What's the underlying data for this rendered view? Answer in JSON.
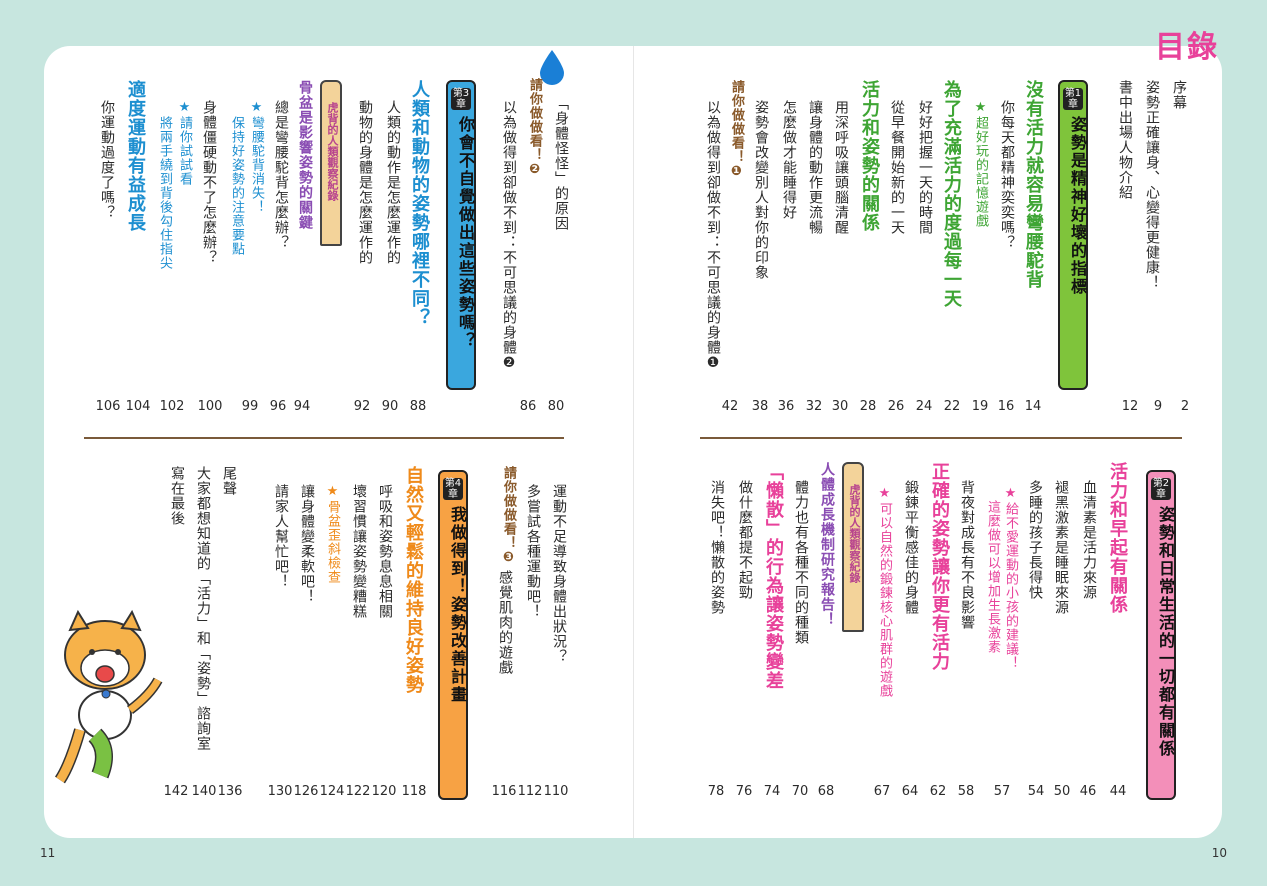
{
  "title": "目錄",
  "page_numbers": {
    "left": "11",
    "right": "10"
  },
  "colors": {
    "bg": "#c7e6df",
    "pink": "#e8419a",
    "green_chapter": "#7fc43b",
    "blue_chapter": "#3aa7de",
    "orange_chapter": "#f7a244",
    "pink_chapter": "#f38fb9",
    "heading_blue": "#1d8fd0",
    "heading_green": "#3ea534",
    "heading_orange": "#ef8a1a",
    "heading_pink": "#e8419a",
    "heading_purple": "#8a4db3",
    "heading_brown": "#8a5a2b"
  },
  "right_top": {
    "entries": [
      {
        "text": "序幕",
        "page": "2"
      },
      {
        "text": "姿勢正確讓身、心變得更健康！",
        "page": "9"
      },
      {
        "text": "書中出場人物介紹",
        "page": "12"
      }
    ],
    "chapter1_num": "第1章",
    "chapter1_title": "姿勢是精神好壞的指標",
    "c1": [
      {
        "text": "沒有活力就容易彎腰駝背",
        "page": "14"
      },
      {
        "text": "你每天都精神奕奕嗎？",
        "page": "16"
      },
      {
        "text": "★超好玩的記憶遊戲",
        "page": "19"
      },
      {
        "text": "為了充滿活力的度過每一天",
        "page": "22"
      },
      {
        "text": "好好把握一天的時間",
        "page": "24"
      },
      {
        "text": "從早餐開始新的一天",
        "page": "26"
      },
      {
        "text": "活力和姿勢的關係",
        "page": "28"
      },
      {
        "text": "用深呼吸讓頭腦清醒",
        "page": "30"
      },
      {
        "text": "讓身體的動作更流暢",
        "page": "32"
      },
      {
        "text": "怎麼做才能睡得好",
        "page": "36"
      },
      {
        "text": "姿勢會改變別人對你的印象",
        "page": "38"
      },
      {
        "text": "請你做做看！❶",
        "page": ""
      },
      {
        "text": "以為做得到卻做不到：不可思議的身體❶",
        "page": "42"
      }
    ]
  },
  "right_bottom": {
    "chapter2_num": "第2章",
    "chapter2_title": "姿勢和日常生活的一切都有關係",
    "c2": [
      {
        "text": "活力和早起有關係",
        "page": "44"
      },
      {
        "text": "血清素是活力來源",
        "page": "46"
      },
      {
        "text": "褪黑激素是睡眠來源",
        "page": "50"
      },
      {
        "text": "多睡的孩子長得快",
        "page": "54"
      },
      {
        "text": "★給不愛運動的小孩的建議！",
        "page": "57"
      },
      {
        "text": "這麼做可以增加生長激素",
        "page": ""
      },
      {
        "text": "背夜對成長有不良影響",
        "page": "58"
      },
      {
        "text": "正確的姿勢讓你更有活力",
        "page": "62"
      },
      {
        "text": "鍛鍊平衡感佳的身體",
        "page": "64"
      },
      {
        "text": "★可以自然的鍛鍊核心肌群的遊戲",
        "page": "67"
      },
      {
        "text": "虎背的人類觀察紀錄",
        "page": ""
      },
      {
        "text": "人體成長機制研究報告！",
        "page": "68"
      },
      {
        "text": "體力也有各種不同的種類",
        "page": "70"
      },
      {
        "text": "「懶散」的行為讓姿勢變差",
        "page": "74"
      },
      {
        "text": "做什麼都提不起勁",
        "page": "76"
      },
      {
        "text": "消失吧！懶散的姿勢",
        "page": "78"
      }
    ]
  },
  "left_top": {
    "entries_a": [
      {
        "text": "「身體怪怪」的原因",
        "page": "80"
      },
      {
        "text": "請你做做看！❷",
        "page": ""
      },
      {
        "text": "以為做得到卻做不到：不可思議的身體❷",
        "page": "86"
      }
    ],
    "chapter3_num": "第3章",
    "chapter3_title": "你會不自覺做出這些姿勢嗎？",
    "c3": [
      {
        "text": "人類和動物的姿勢哪裡不同？",
        "page": "88"
      },
      {
        "text": "人類的動作是怎麼運作的",
        "page": "90"
      },
      {
        "text": "動物的身體是怎麼運作的",
        "page": "92"
      },
      {
        "text": "虎背的人類觀察紀錄",
        "page": ""
      },
      {
        "text": "骨盆是影響姿勢的關鍵",
        "page": "94"
      },
      {
        "text": "總是彎腰駝背怎麼辦？",
        "page": "96"
      },
      {
        "text": "★彎腰駝背消失！",
        "page": "99"
      },
      {
        "text": "保持好姿勢的注意要點",
        "page": ""
      },
      {
        "text": "身體僵硬動不了怎麼辦？",
        "page": "100"
      },
      {
        "text": "★請你試試看",
        "page": "102"
      },
      {
        "text": "將兩手繞到背後勾住指尖",
        "page": ""
      },
      {
        "text": "適度運動有益成長",
        "page": "104"
      },
      {
        "text": "你運動過度了嗎？",
        "page": "106"
      }
    ]
  },
  "left_bottom": {
    "chapter4_num": "第4章",
    "chapter4_title": "我做得到！姿勢改善計畫",
    "c4": [
      {
        "text": "運動不足導致身體出狀況？",
        "page": "110"
      },
      {
        "text": "多嘗試各種運動吧！",
        "page": "112"
      },
      {
        "text": "請你做做看！❸",
        "page": ""
      },
      {
        "text": "感覺肌肉的遊戲",
        "page": "116"
      },
      {
        "text": "自然又輕鬆的維持良好姿勢",
        "page": "118"
      },
      {
        "text": "呼吸和姿勢息息相關",
        "page": "120"
      },
      {
        "text": "壞習慣讓姿勢變糟糕",
        "page": "122"
      },
      {
        "text": "★骨盆歪斜檢查",
        "page": "124"
      },
      {
        "text": "讓身體變柔軟吧！",
        "page": "126"
      },
      {
        "text": "請家人幫忙吧！",
        "page": "130"
      },
      {
        "text": "尾聲",
        "page": "136"
      },
      {
        "text": "大家都想知道的「活力」和「姿勢」諮詢室",
        "page": "140"
      },
      {
        "text": "寫在最後",
        "page": "142"
      }
    ]
  }
}
